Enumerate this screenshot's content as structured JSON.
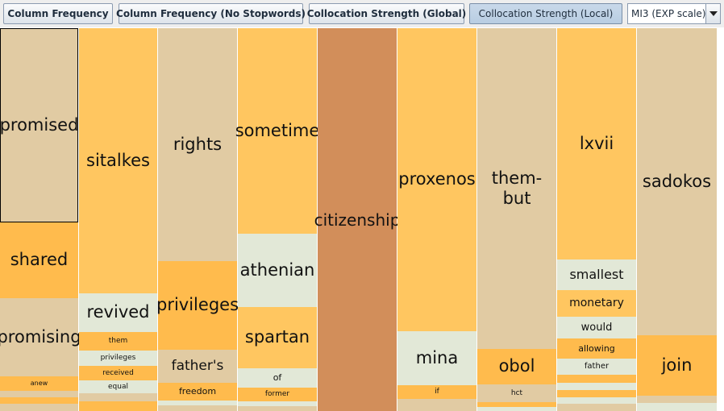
{
  "toolbar": {
    "buttons": [
      "Column Frequency",
      "Column Frequency (No Stopwords)",
      "Collocation Strength (Global)",
      "Collocation Strength (Local)"
    ],
    "active": "Collocation Strength (Local)",
    "scale_select": {
      "value": "MI3 (EXP scale)"
    }
  },
  "colors": {
    "orange": "#ffc660",
    "dark_orange": "#ffbb4d",
    "tan": "#e1cba3",
    "pale": "#e2e8d7",
    "brown": "#d28e5a"
  },
  "columns": [
    {
      "cells": [
        {
          "text": "promised",
          "color": "tan",
          "selected": true
        },
        {
          "text": "shared",
          "color": "dark_orange"
        },
        {
          "text": "promising",
          "color": "tan"
        },
        {
          "text": "anew",
          "color": "dark_orange"
        },
        {
          "text": "",
          "color": "tan"
        },
        {
          "text": "",
          "color": "dark_orange"
        },
        {
          "text": "",
          "color": "tan"
        }
      ]
    },
    {
      "cells": [
        {
          "text": "sitalkes",
          "color": "orange"
        },
        {
          "text": "revived",
          "color": "pale"
        },
        {
          "text": "them",
          "color": "dark_orange"
        },
        {
          "text": "privileges",
          "color": "pale"
        },
        {
          "text": "received",
          "color": "dark_orange"
        },
        {
          "text": "equal",
          "color": "pale"
        },
        {
          "text": "",
          "color": "tan"
        },
        {
          "text": "",
          "color": "dark_orange"
        }
      ]
    },
    {
      "cells": [
        {
          "text": "rights",
          "color": "tan"
        },
        {
          "text": "privileges",
          "color": "dark_orange"
        },
        {
          "text": "father's",
          "color": "tan"
        },
        {
          "text": "freedom",
          "color": "dark_orange"
        },
        {
          "text": "",
          "color": "pale"
        },
        {
          "text": "",
          "color": "tan"
        }
      ]
    },
    {
      "cells": [
        {
          "text": "sometime",
          "color": "orange"
        },
        {
          "text": "athenian",
          "color": "pale"
        },
        {
          "text": "spartan",
          "color": "orange"
        },
        {
          "text": "of",
          "color": "pale"
        },
        {
          "text": "former",
          "color": "dark_orange"
        },
        {
          "text": "",
          "color": "pale"
        },
        {
          "text": "",
          "color": "tan"
        }
      ]
    },
    {
      "cells": [
        {
          "text": "citizenship",
          "color": "brown"
        }
      ]
    },
    {
      "cells": [
        {
          "text": "proxenos",
          "color": "orange"
        },
        {
          "text": "mina",
          "color": "pale"
        },
        {
          "text": "if",
          "color": "dark_orange"
        },
        {
          "text": "",
          "color": "tan"
        }
      ]
    },
    {
      "cells": [
        {
          "text": "them-\nbut",
          "color": "tan"
        },
        {
          "text": "obol",
          "color": "dark_orange"
        },
        {
          "text": "hct",
          "color": "tan"
        },
        {
          "text": "",
          "color": "dark_orange"
        },
        {
          "text": "",
          "color": "pale"
        }
      ]
    },
    {
      "cells": [
        {
          "text": "lxvii",
          "color": "orange"
        },
        {
          "text": "smallest",
          "color": "pale"
        },
        {
          "text": "monetary",
          "color": "orange"
        },
        {
          "text": "would",
          "color": "pale"
        },
        {
          "text": "allowing",
          "color": "dark_orange"
        },
        {
          "text": "father",
          "color": "pale"
        },
        {
          "text": "",
          "color": "dark_orange"
        },
        {
          "text": "",
          "color": "pale"
        },
        {
          "text": "",
          "color": "dark_orange"
        },
        {
          "text": "",
          "color": "pale"
        },
        {
          "text": "",
          "color": "tan"
        }
      ]
    },
    {
      "cells": [
        {
          "text": "sadokos",
          "color": "tan"
        },
        {
          "text": "join",
          "color": "dark_orange"
        },
        {
          "text": "",
          "color": "tan"
        },
        {
          "text": "",
          "color": "pale"
        }
      ]
    }
  ]
}
